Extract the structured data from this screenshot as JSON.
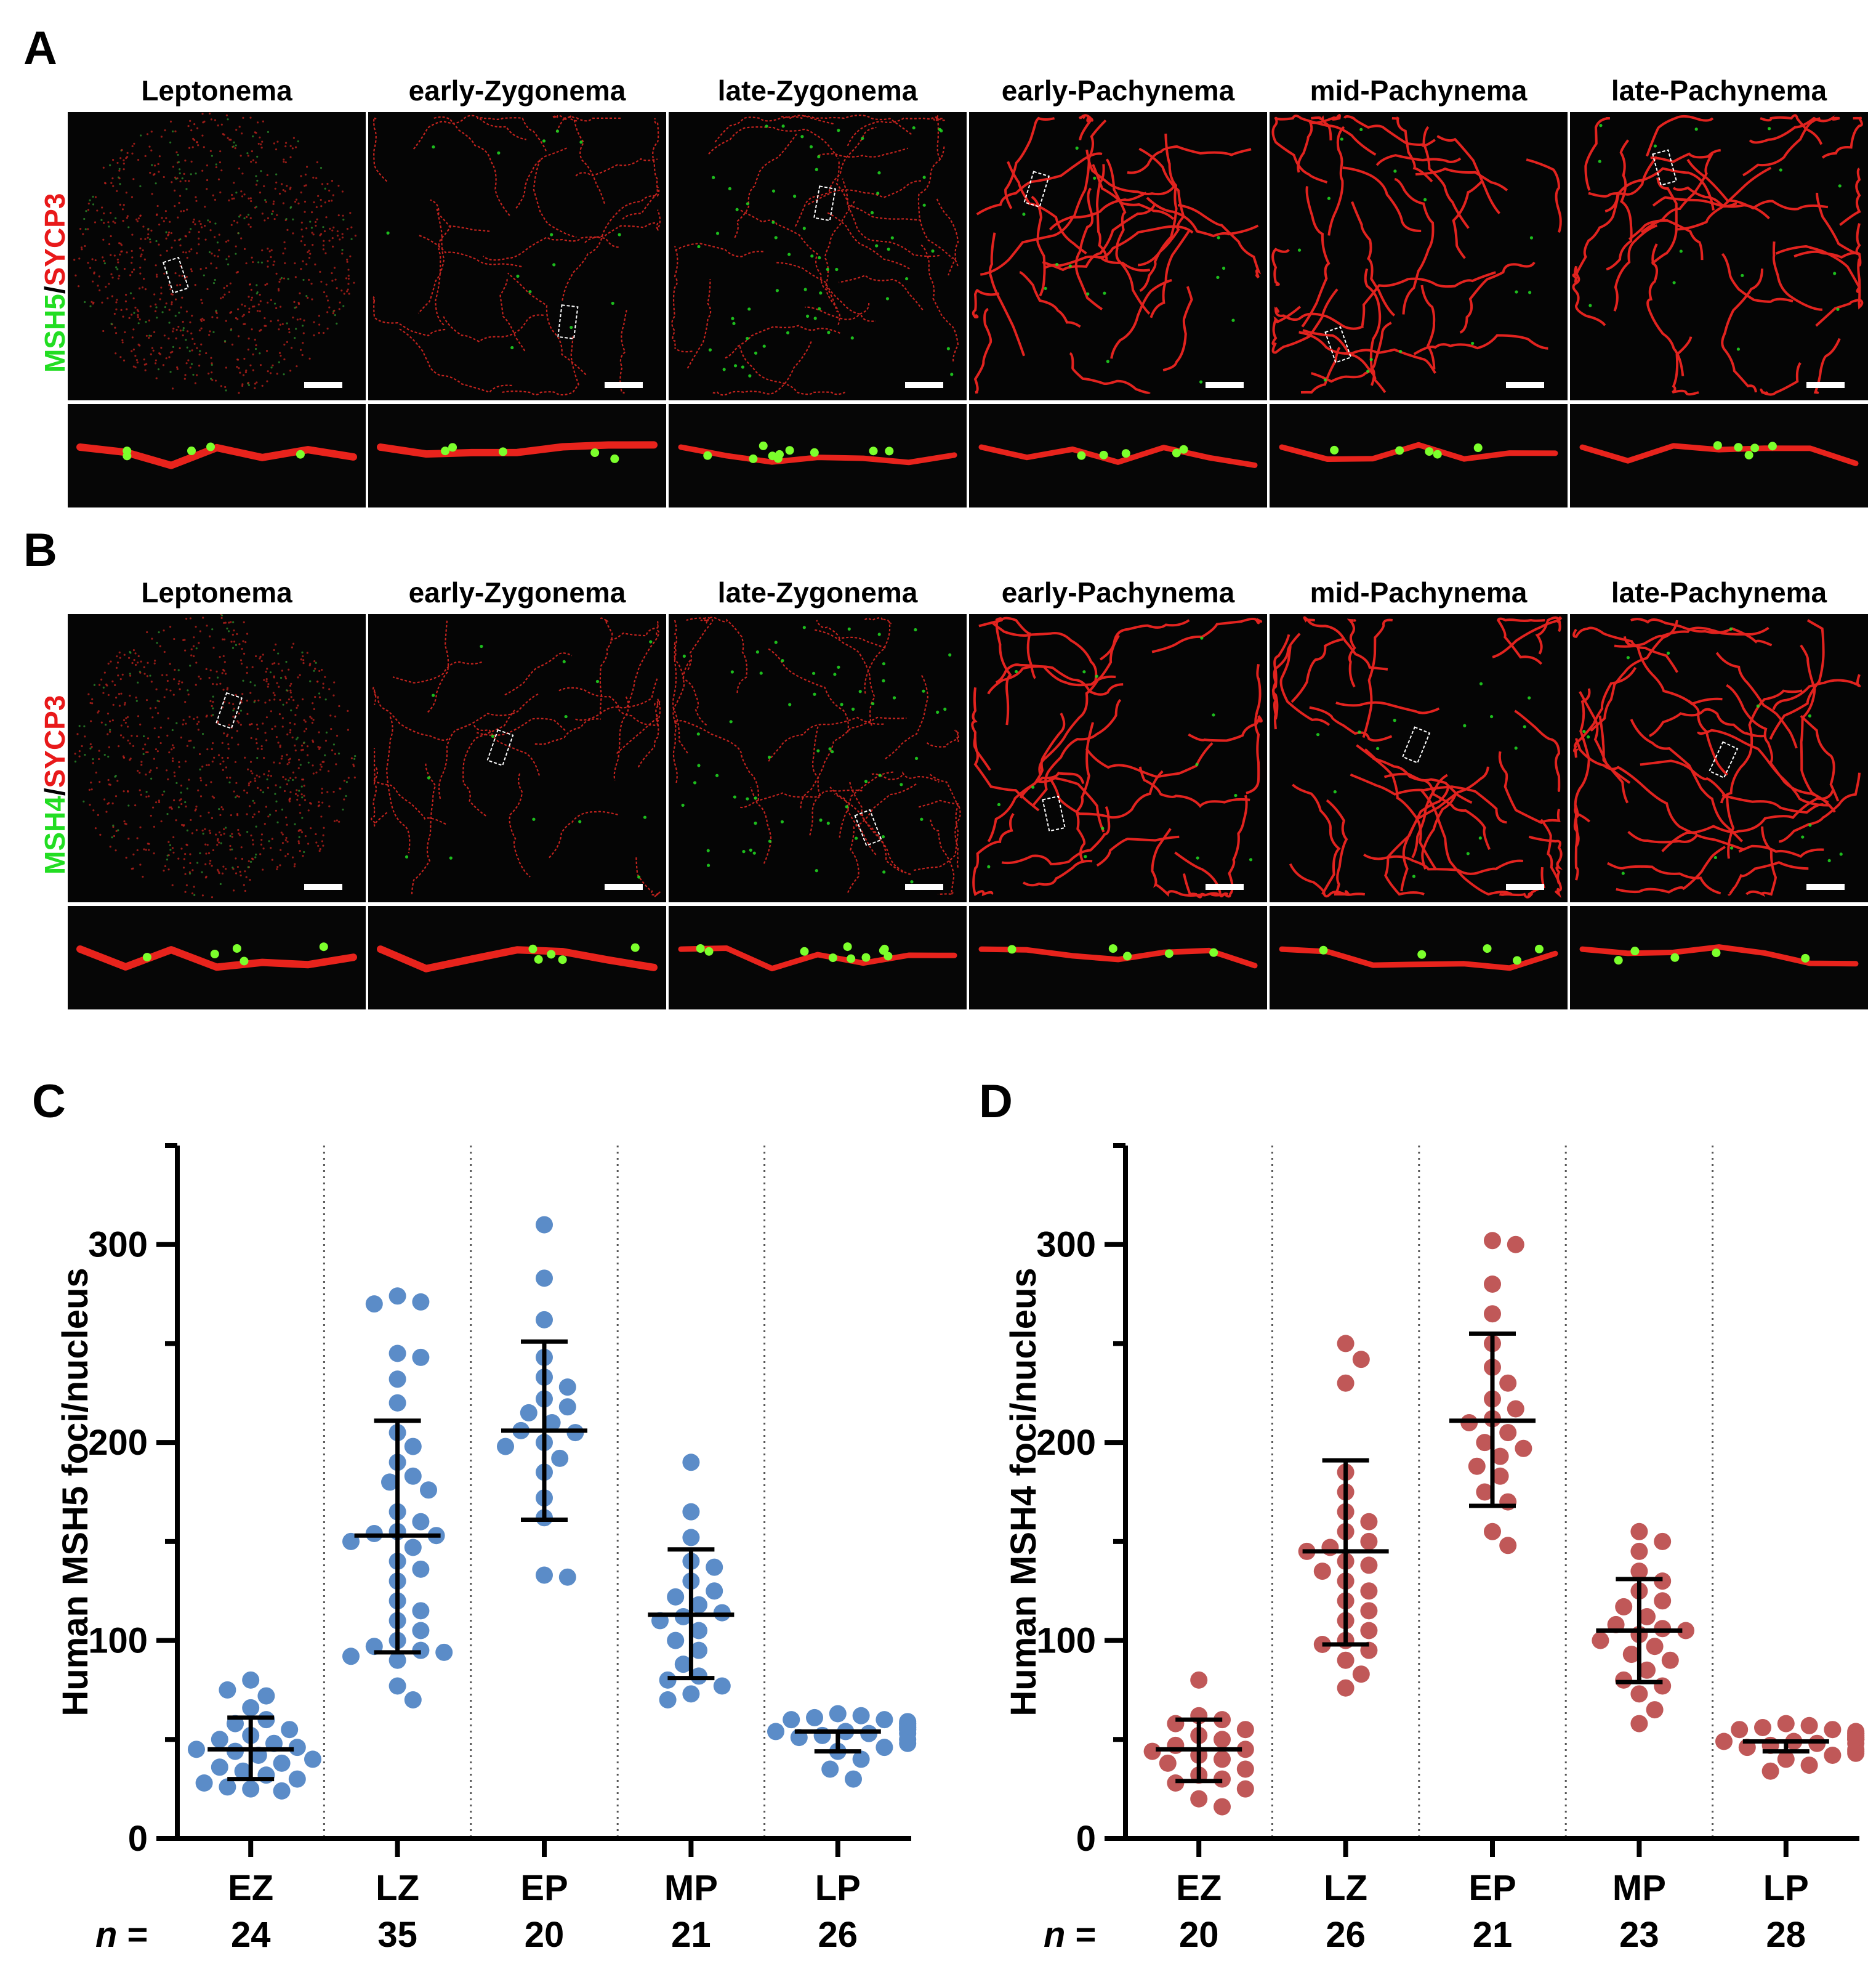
{
  "panel_letters": {
    "a": "A",
    "b": "B",
    "c": "C",
    "d": "D"
  },
  "panel_a": {
    "marker_green": "MSH5",
    "slash": "/",
    "marker_red": "SYCP3",
    "stages": [
      "Leptonema",
      "early-Zygonema",
      "late-Zygonema",
      "early-Pachynema",
      "mid-Pachynema",
      "late-Pachynema"
    ]
  },
  "panel_b": {
    "marker_green": "MSH4",
    "slash": "/",
    "marker_red": "SYCP3",
    "stages": [
      "Leptonema",
      "early-Zygonema",
      "late-Zygonema",
      "early-Pachynema",
      "mid-Pachynema",
      "late-Pachynema"
    ]
  },
  "colors": {
    "green": "#22dd22",
    "red": "#e8191a",
    "blue_dots": "#5b8cc8",
    "red_dots": "#c05858"
  },
  "chart_data": [
    {
      "type": "scatter",
      "panel": "C",
      "ylabel": "Human MSH5 foci/nucleus",
      "ylim": [
        0,
        350
      ],
      "yticks": [
        0,
        100,
        200,
        300
      ],
      "n_label": "n",
      "n_eq": " =",
      "categories": [
        "EZ",
        "LZ",
        "EP",
        "MP",
        "LP"
      ],
      "n": [
        "24",
        "35",
        "20",
        "21",
        "26"
      ],
      "color": "#5b8cc8",
      "groups": [
        {
          "category": "EZ",
          "mean": 45,
          "sd_low": 30,
          "sd_high": 61,
          "values": [
            80,
            72,
            75,
            66,
            60,
            58,
            55,
            52,
            50,
            48,
            46,
            45,
            44,
            42,
            40,
            38,
            36,
            34,
            32,
            30,
            28,
            26,
            25,
            24
          ]
        },
        {
          "category": "LZ",
          "mean": 153,
          "sd_low": 94,
          "sd_high": 211,
          "values": [
            274,
            271,
            270,
            245,
            243,
            232,
            220,
            205,
            198,
            190,
            183,
            180,
            176,
            165,
            160,
            155,
            154,
            153,
            150,
            147,
            140,
            136,
            130,
            120,
            115,
            110,
            105,
            100,
            97,
            95,
            94,
            92,
            90,
            77,
            70
          ]
        },
        {
          "category": "EP",
          "mean": 206,
          "sd_low": 161,
          "sd_high": 251,
          "values": [
            310,
            283,
            262,
            243,
            233,
            228,
            222,
            218,
            215,
            210,
            206,
            205,
            200,
            198,
            192,
            185,
            172,
            162,
            133,
            132
          ]
        },
        {
          "category": "MP",
          "mean": 113,
          "sd_low": 81,
          "sd_high": 146,
          "values": [
            190,
            165,
            152,
            140,
            137,
            130,
            125,
            122,
            118,
            114,
            112,
            110,
            105,
            100,
            95,
            88,
            82,
            80,
            77,
            73,
            70
          ]
        },
        {
          "category": "LP",
          "mean": 54,
          "sd_low": 44,
          "sd_high": 54,
          "values": [
            63,
            62,
            61,
            60,
            60,
            59,
            58,
            58,
            57,
            56,
            56,
            55,
            55,
            54,
            54,
            53,
            53,
            52,
            51,
            50,
            48,
            46,
            44,
            40,
            35,
            30
          ]
        }
      ]
    },
    {
      "type": "scatter",
      "panel": "D",
      "ylabel": "Human MSH4 foci/nucleus",
      "ylim": [
        0,
        350
      ],
      "yticks": [
        0,
        100,
        200,
        300
      ],
      "n_label": "n",
      "n_eq": " =",
      "categories": [
        "EZ",
        "LZ",
        "EP",
        "MP",
        "LP"
      ],
      "n": [
        "20",
        "26",
        "21",
        "23",
        "28"
      ],
      "color": "#c05858",
      "groups": [
        {
          "category": "EZ",
          "mean": 45,
          "sd_low": 29,
          "sd_high": 60,
          "values": [
            80,
            62,
            60,
            58,
            55,
            52,
            50,
            47,
            45,
            44,
            42,
            40,
            38,
            35,
            32,
            30,
            28,
            25,
            20,
            16
          ]
        },
        {
          "category": "LZ",
          "mean": 145,
          "sd_low": 98,
          "sd_high": 191,
          "values": [
            250,
            242,
            230,
            185,
            175,
            165,
            160,
            155,
            150,
            147,
            145,
            140,
            138,
            135,
            130,
            125,
            120,
            115,
            110,
            105,
            100,
            98,
            95,
            90,
            83,
            76
          ]
        },
        {
          "category": "EP",
          "mean": 211,
          "sd_low": 168,
          "sd_high": 255,
          "values": [
            302,
            300,
            280,
            265,
            250,
            238,
            230,
            222,
            217,
            212,
            210,
            205,
            200,
            197,
            193,
            188,
            183,
            175,
            170,
            155,
            148
          ]
        },
        {
          "category": "MP",
          "mean": 105,
          "sd_low": 79,
          "sd_high": 131,
          "values": [
            155,
            150,
            145,
            135,
            130,
            125,
            120,
            117,
            112,
            108,
            106,
            105,
            103,
            100,
            97,
            93,
            90,
            85,
            80,
            77,
            73,
            65,
            58
          ]
        },
        {
          "category": "LP",
          "mean": 49,
          "sd_low": 44,
          "sd_high": 49,
          "values": [
            58,
            57,
            56,
            55,
            55,
            54,
            53,
            53,
            52,
            52,
            51,
            51,
            50,
            50,
            50,
            49,
            49,
            48,
            48,
            47,
            46,
            45,
            44,
            43,
            42,
            40,
            37,
            34
          ]
        }
      ]
    }
  ]
}
